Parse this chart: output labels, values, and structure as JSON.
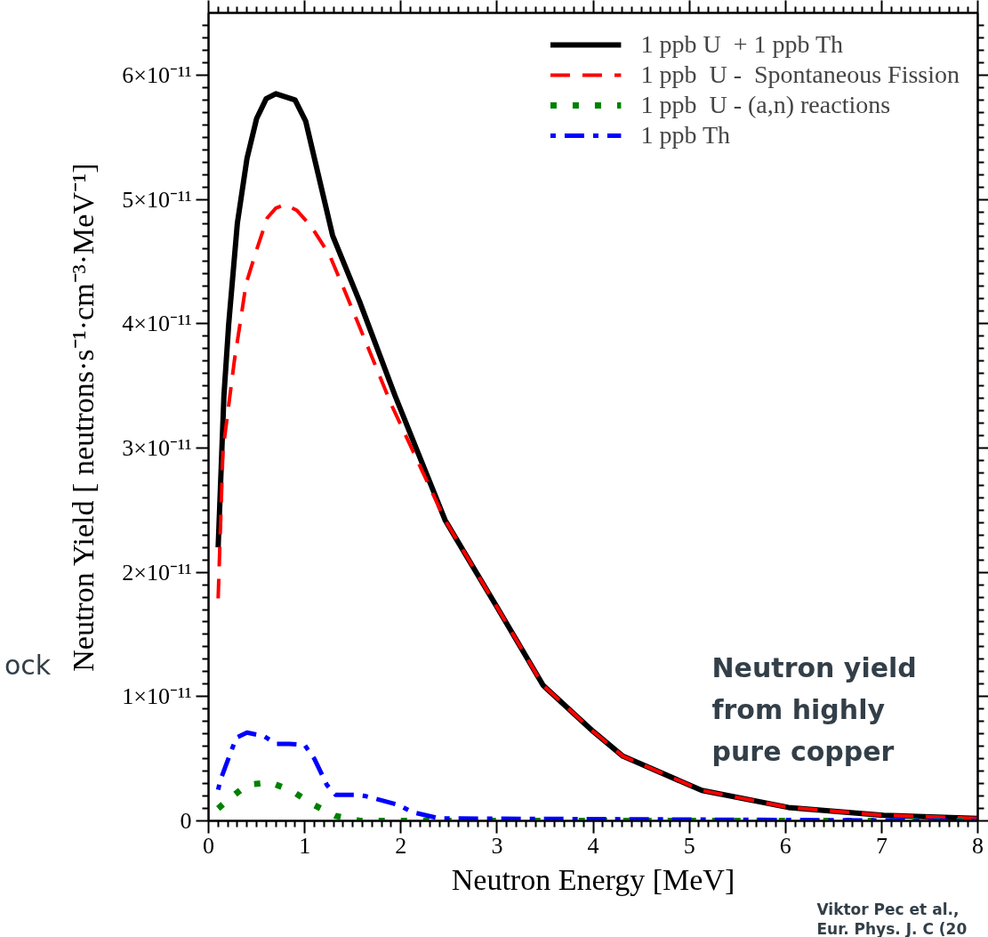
{
  "chart_data": {
    "type": "line",
    "xlabel": "Neutron Energy [MeV]",
    "ylabel": "Neutron Yield [ neutrons·s⁻¹·cm⁻³·MeV⁻¹]",
    "annotations": [
      "Neutron yield\nfrom highly\npure copper",
      "Viktor Pec et al.,\nEur. Phys. J. C (20",
      "ock"
    ],
    "xlim": [
      0,
      8
    ],
    "xticks": [
      0,
      1,
      2,
      3,
      4,
      5,
      6,
      7,
      8
    ],
    "ylim": [
      0,
      6.5e-11
    ],
    "yticks": [
      {
        "value": 0,
        "label": "0"
      },
      {
        "value": 1e-11,
        "label": "1×10⁻¹¹"
      },
      {
        "value": 2e-11,
        "label": "2×10⁻¹¹"
      },
      {
        "value": 3e-11,
        "label": "3×10⁻¹¹"
      },
      {
        "value": 4e-11,
        "label": "4×10⁻¹¹"
      },
      {
        "value": 5e-11,
        "label": "5×10⁻¹¹"
      },
      {
        "value": 6e-11,
        "label": "6×10⁻¹¹"
      }
    ],
    "grid": false,
    "legend": "top right",
    "marker": "none",
    "series": [
      {
        "name": "1 ppb U  + 1 ppb Th",
        "color": "#000000",
        "line_style": "solid",
        "x": [
          0.1,
          0.16,
          0.21,
          0.3,
          0.4,
          0.5,
          0.6,
          0.7,
          0.9,
          1.01,
          1.29,
          1.57,
          1.94,
          2.46,
          3.0,
          3.48,
          4.0,
          4.31,
          5.13,
          6.03,
          7.02,
          8.0
        ],
        "values": [
          2.2e-11,
          3.42e-11,
          4e-11,
          4.81e-11,
          5.33e-11,
          5.65e-11,
          5.81e-11,
          5.85e-11,
          5.8e-11,
          5.63e-11,
          4.71e-11,
          4.18e-11,
          3.42e-11,
          2.42e-11,
          1.72e-11,
          1.09e-11,
          7.2e-12,
          5.2e-12,
          2.45e-12,
          1.08e-12,
          4.5e-13,
          2e-13
        ]
      },
      {
        "name": "1 ppb  U -  Spontaneous Fission",
        "color": "#ff0000",
        "line_style": "dashed",
        "x": [
          0.1,
          0.15,
          0.27,
          0.33,
          0.39,
          0.49,
          0.61,
          0.7,
          0.8,
          0.92,
          1.07,
          1.26,
          1.44,
          1.69,
          1.9,
          2.46,
          3.0,
          3.48,
          4.0,
          4.31,
          5.13,
          6.03,
          7.02,
          8.0
        ],
        "values": [
          1.79e-11,
          2.98e-11,
          3.71e-11,
          4.01e-11,
          4.32e-11,
          4.57e-11,
          4.85e-11,
          4.93e-11,
          4.96e-11,
          4.91e-11,
          4.78e-11,
          4.55e-11,
          4.22e-11,
          3.75e-11,
          3.35e-11,
          2.42e-11,
          1.72e-11,
          1.09e-11,
          7.2e-12,
          5.2e-12,
          2.45e-12,
          1.08e-12,
          4.5e-13,
          2e-13
        ]
      },
      {
        "name": "1 ppb  U - (a,n) reactions",
        "color": "#008000",
        "line_style": "dotted",
        "x": [
          0.1,
          0.19,
          0.4,
          0.64,
          0.87,
          1.09,
          1.32,
          1.57,
          8.0
        ],
        "values": [
          1e-12,
          1.6e-12,
          2.9e-12,
          3.1e-12,
          2.4e-12,
          1.3e-12,
          4e-13,
          0,
          0
        ]
      },
      {
        "name": "1 ppb Th",
        "color": "#0000ff",
        "line_style": "dashdot",
        "x": [
          0.1,
          0.12,
          0.23,
          0.29,
          0.4,
          0.58,
          0.7,
          0.84,
          1.0,
          1.1,
          1.23,
          1.32,
          1.52,
          1.63,
          1.97,
          2.12,
          2.4,
          8.0
        ],
        "values": [
          2.5e-12,
          3.2e-12,
          5.5e-12,
          6.7e-12,
          7.1e-12,
          6.8e-12,
          6.2e-12,
          6.2e-12,
          6.1e-12,
          5e-12,
          2.9e-12,
          2.1e-12,
          2.1e-12,
          2e-12,
          1.3e-12,
          7e-13,
          2e-13,
          0
        ]
      }
    ]
  }
}
